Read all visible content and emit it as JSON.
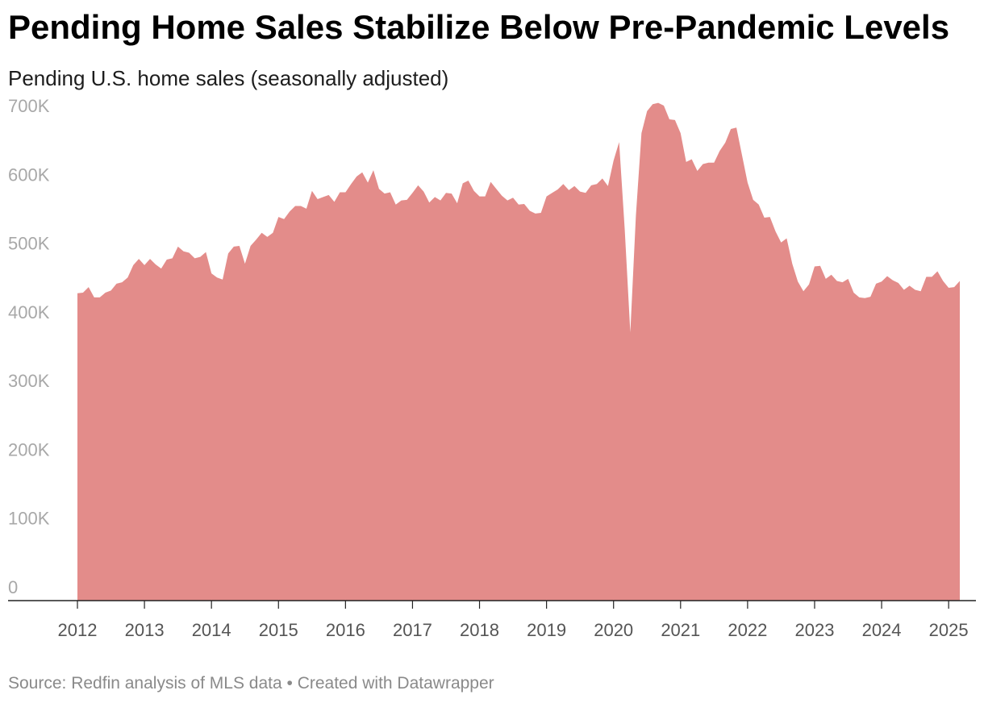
{
  "title": "Pending Home Sales Stabilize Below Pre-Pandemic Levels",
  "subtitle": "Pending U.S. home sales (seasonally adjusted)",
  "source": "Source: Redfin analysis of MLS data • Created with Datawrapper",
  "colors": {
    "area": "#e38c8a",
    "axis": "#222222",
    "tick_label": "#a8a8a8",
    "x_label": "#555555"
  },
  "chart_data": {
    "type": "area",
    "title": "Pending Home Sales Stabilize Below Pre-Pandemic Levels",
    "subtitle": "Pending U.S. home sales (seasonally adjusted)",
    "x_start": "2012-01",
    "x_end": "2025-03",
    "x_ticks": [
      "2012",
      "2013",
      "2014",
      "2015",
      "2016",
      "2017",
      "2018",
      "2019",
      "2020",
      "2021",
      "2022",
      "2023",
      "2024",
      "2025"
    ],
    "y_ticks": [
      {
        "value": 0,
        "label": "0"
      },
      {
        "value": 100000,
        "label": "100K"
      },
      {
        "value": 200000,
        "label": "200K"
      },
      {
        "value": 300000,
        "label": "300K"
      },
      {
        "value": 400000,
        "label": "400K"
      },
      {
        "value": 500000,
        "label": "500K"
      },
      {
        "value": 600000,
        "label": "600K"
      },
      {
        "value": 700000,
        "label": "700K"
      }
    ],
    "ylim": [
      0,
      720000
    ],
    "grid": false,
    "legend": "none",
    "series": [
      {
        "values": [
          447000,
          448000,
          456000,
          441000,
          441000,
          448000,
          451000,
          461000,
          463000,
          470000,
          488000,
          497000,
          488000,
          497000,
          489000,
          483000,
          496000,
          498000,
          515000,
          508000,
          506000,
          498000,
          500000,
          507000,
          476000,
          470000,
          467000,
          505000,
          515000,
          516000,
          490000,
          516000,
          525000,
          535000,
          529000,
          535000,
          558000,
          555000,
          566000,
          574000,
          574000,
          570000,
          596000,
          584000,
          587000,
          590000,
          580000,
          594000,
          594000,
          606000,
          617000,
          623000,
          608000,
          626000,
          599000,
          592000,
          594000,
          576000,
          582000,
          583000,
          593000,
          604000,
          595000,
          579000,
          587000,
          582000,
          593000,
          592000,
          578000,
          607000,
          611000,
          596000,
          588000,
          588000,
          609000,
          599000,
          589000,
          582000,
          586000,
          576000,
          577000,
          567000,
          563000,
          564000,
          588000,
          593000,
          598000,
          606000,
          597000,
          603000,
          595000,
          593000,
          604000,
          606000,
          614000,
          603000,
          640000,
          667000,
          540000,
          390000,
          560000,
          680000,
          712000,
          722000,
          724000,
          720000,
          700000,
          699000,
          680000,
          638000,
          642000,
          625000,
          635000,
          637000,
          637000,
          654000,
          666000,
          686000,
          688000,
          648000,
          608000,
          583000,
          576000,
          557000,
          558000,
          537000,
          521000,
          527000,
          490000,
          464000,
          450000,
          460000,
          486000,
          487000,
          468000,
          474000,
          465000,
          463000,
          468000,
          448000,
          441000,
          440000,
          442000,
          461000,
          464000,
          472000,
          466000,
          462000,
          452000,
          458000,
          452000,
          450000,
          471000,
          471000,
          479000,
          465000,
          455000,
          456000,
          465000
        ]
      }
    ]
  }
}
